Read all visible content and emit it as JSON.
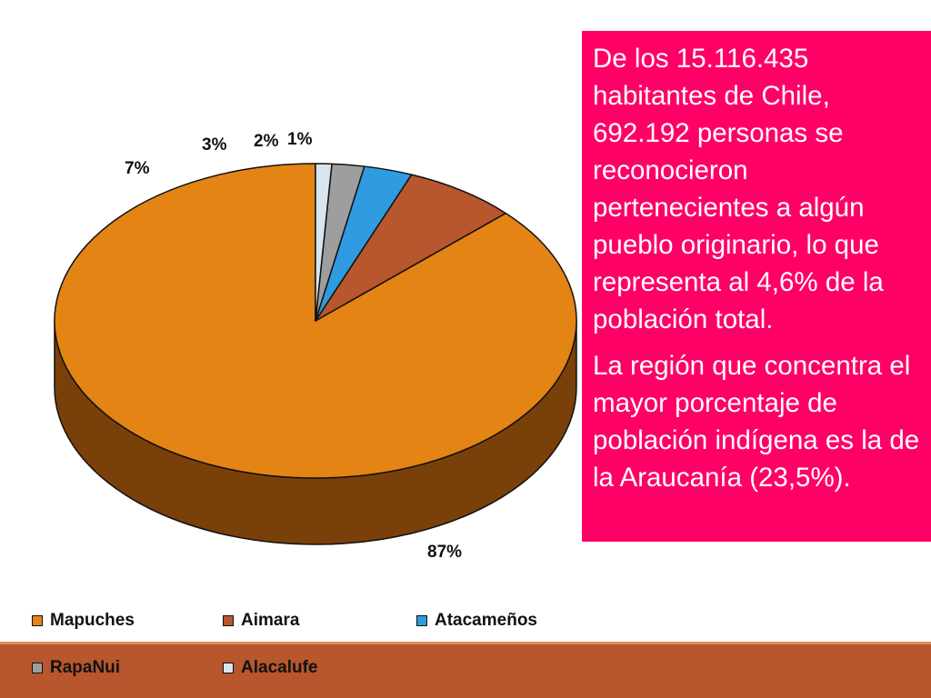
{
  "chart_data": {
    "type": "pie",
    "categories": [
      "Mapuches",
      "Aimara",
      "Atacameños",
      "RapaNui",
      "Alacalufe"
    ],
    "values": [
      87,
      7,
      3,
      2,
      1
    ],
    "data_labels": [
      "87%",
      "7%",
      "3%",
      "2%",
      "1%"
    ],
    "colors": [
      "#e38414",
      "#b8562d",
      "#2f9be0",
      "#9e9e9e",
      "#d8e5ef"
    ],
    "side_colors": [
      "#7a4009",
      "#6b2f14",
      "#18578a",
      "#5b5b5b",
      "#8a98a4"
    ],
    "three_d": true,
    "legend_position": "bottom"
  },
  "text_box": {
    "paragraph_1": "De los 15.116.435 habitantes de Chile, 692.192 personas se reconocieron pertenecientes a algún pueblo originario, lo que representa al 4,6% de la población total.",
    "paragraph_2": "La región que concentra el mayor porcentaje de población indígena es la de la Araucanía (23,5%).",
    "background_color": "#ff0066"
  }
}
